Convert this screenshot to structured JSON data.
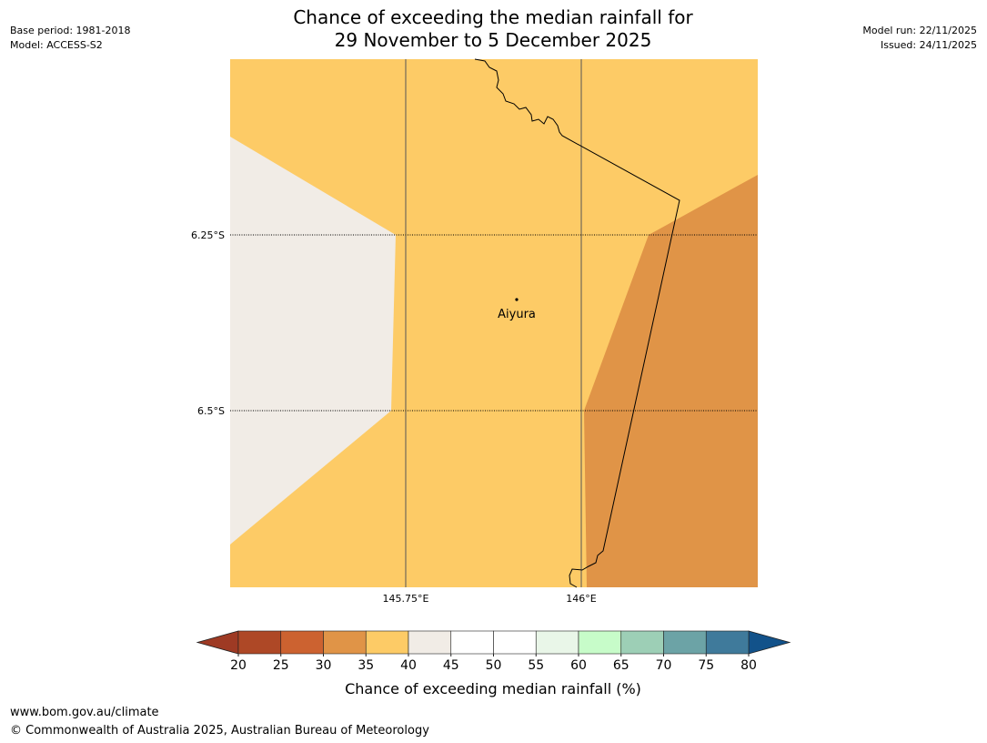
{
  "header": {
    "title_line1": "Chance of exceeding the median rainfall for",
    "title_line2": "29 November to 5 December 2025",
    "base_period": "Base period: 1981-2018",
    "model": "Model: ACCESS-S2",
    "model_run": "Model run: 22/11/2025",
    "issued": "Issued: 24/11/2025"
  },
  "map": {
    "lat_labels": [
      "6.25°S",
      "6.5°S"
    ],
    "lon_labels": [
      "145.75°E",
      "146°E"
    ],
    "location": {
      "name": "Aiyura",
      "lon": 145.904,
      "lat": -6.338
    },
    "region_colors": {
      "background": "#fdcb66",
      "west_band_40_45": "#f1ece6",
      "east_band_30_35": "#e09447"
    }
  },
  "colorbar": {
    "label": "Chance of exceeding median rainfall (%)",
    "ticks": [
      "20",
      "25",
      "30",
      "35",
      "40",
      "45",
      "50",
      "55",
      "60",
      "65",
      "70",
      "75",
      "80"
    ],
    "under_color": "#9e3a24",
    "over_color": "#12528a",
    "colors": [
      "#ae4826",
      "#cc6230",
      "#e09447",
      "#fdcb66",
      "#f1ece6",
      "#ffffff",
      "#ffffff",
      "#e9f6e8",
      "#c7fcc9",
      "#9dcfb6",
      "#6ca3a6",
      "#3f7a9b"
    ]
  },
  "footer": {
    "url": "www.bom.gov.au/climate",
    "copyright": "© Commonwealth of Australia 2025, Australian Bureau of Meteorology"
  }
}
